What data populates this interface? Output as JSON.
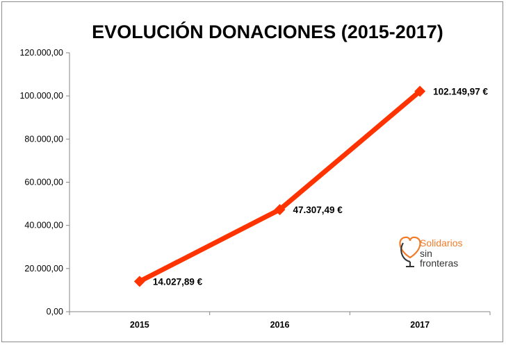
{
  "chart_data": {
    "type": "line",
    "title": "EVOLUCIÓN DONACIONES (2015-2017)",
    "categories": [
      "2015",
      "2016",
      "2017"
    ],
    "series": [
      {
        "values": [
          14027.89,
          47307.49,
          102149.97
        ],
        "labels": [
          "14.027,89 €",
          "47.307,49 €",
          "102.149,97 €"
        ],
        "color": "#ff3300"
      }
    ],
    "y_ticks": [
      "0,00",
      "20.000,00",
      "40.000,00",
      "60.000,00",
      "80.000,00",
      "100.000,00",
      "120.000,00"
    ],
    "ylim": [
      0,
      120000
    ],
    "xlabel": "",
    "ylabel": "",
    "grid": false,
    "legend": "none",
    "marker": "diamond"
  },
  "logo": {
    "line1": "Solidarios",
    "line2": "sin",
    "line3": "fronteras",
    "accent_color": "#f07c2a",
    "text_color": "#333333",
    "icon": "heart-globe-icon"
  }
}
